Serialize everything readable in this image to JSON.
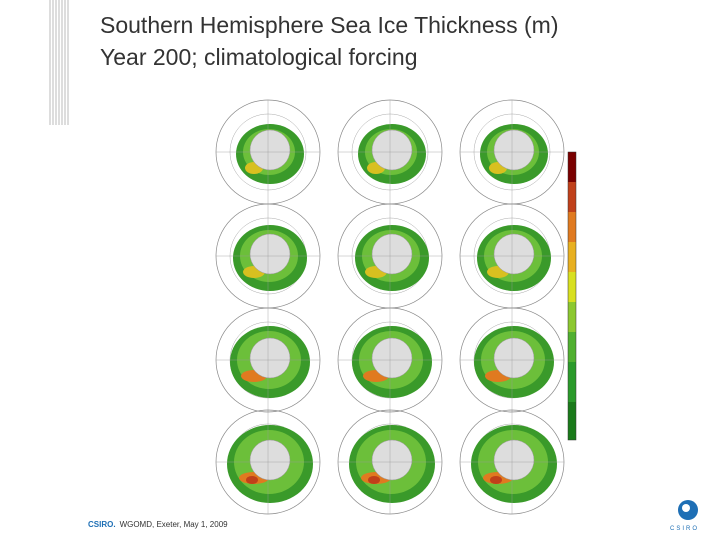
{
  "header": {
    "title_line1": "Southern Hemisphere Sea Ice Thickness (m)",
    "title_line2": "Year 200; climatological forcing"
  },
  "footer": {
    "organisation": "CSIRO.",
    "event": "WGOMD, Exeter, May 1, 2009",
    "logo": "CSIRO"
  }
}
